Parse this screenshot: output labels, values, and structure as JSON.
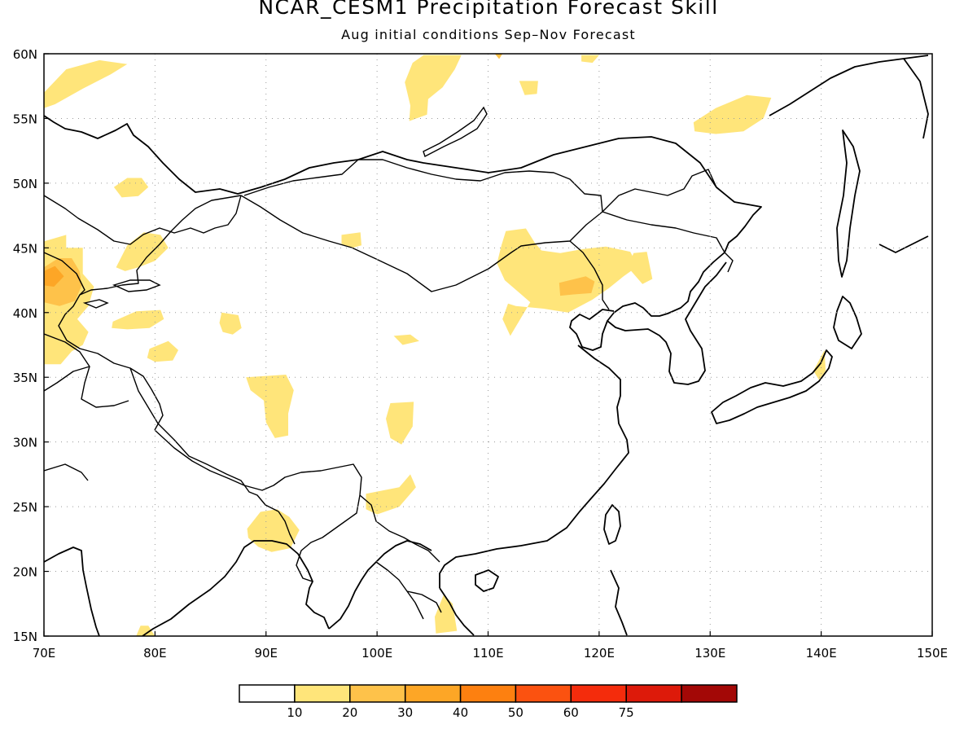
{
  "title": "NCAR_CESM1 Precipitation Forecast Skill",
  "subtitle": "Aug initial conditions  Sep–Nov Forecast",
  "map": {
    "lon_range": [
      70,
      150
    ],
    "lat_range": [
      15,
      60
    ],
    "lon_ticks": [
      {
        "lon": 70,
        "label": "70E"
      },
      {
        "lon": 80,
        "label": "80E"
      },
      {
        "lon": 90,
        "label": "90E"
      },
      {
        "lon": 100,
        "label": "100E"
      },
      {
        "lon": 110,
        "label": "110E"
      },
      {
        "lon": 120,
        "label": "120E"
      },
      {
        "lon": 130,
        "label": "130E"
      },
      {
        "lon": 140,
        "label": "140E"
      },
      {
        "lon": 150,
        "label": "150E"
      }
    ],
    "lat_ticks": [
      {
        "lat": 15,
        "label": "15N"
      },
      {
        "lat": 20,
        "label": "20N"
      },
      {
        "lat": 25,
        "label": "25N"
      },
      {
        "lat": 30,
        "label": "30N"
      },
      {
        "lat": 35,
        "label": "35N"
      },
      {
        "lat": 40,
        "label": "40N"
      },
      {
        "lat": 45,
        "label": "45N"
      },
      {
        "lat": 50,
        "label": "50N"
      },
      {
        "lat": 55,
        "label": "55N"
      },
      {
        "lat": 60,
        "label": "60N"
      }
    ],
    "grid": "dotted"
  },
  "legend": {
    "colors": [
      "#ffffff",
      "#ffe57a",
      "#fec24a",
      "#fda626",
      "#fd8010",
      "#fb5210",
      "#f42c0c",
      "#dd1a0a",
      "#a30806"
    ],
    "labels": [
      "10",
      "20",
      "30",
      "40",
      "50",
      "60",
      "75"
    ]
  },
  "skill_regions": [
    {
      "level": 1,
      "lonlat": [
        [
          70,
          57
        ],
        [
          72,
          58.8
        ],
        [
          75,
          59.5
        ],
        [
          77.5,
          59.2
        ],
        [
          76,
          58.4
        ],
        [
          73.5,
          57.3
        ],
        [
          71,
          56.1
        ],
        [
          70,
          55.8
        ]
      ]
    },
    {
      "level": 1,
      "lonlat": [
        [
          70,
          45.5
        ],
        [
          72,
          46
        ],
        [
          72,
          45
        ],
        [
          73.5,
          45
        ],
        [
          73.5,
          43
        ],
        [
          74.5,
          42
        ],
        [
          74,
          40.5
        ],
        [
          73,
          39.5
        ],
        [
          74,
          38.5
        ],
        [
          73.5,
          37.5
        ],
        [
          72.5,
          37
        ],
        [
          71.5,
          36
        ],
        [
          70,
          36
        ]
      ]
    },
    {
      "level": 1,
      "lonlat": [
        [
          76.5,
          43.5
        ],
        [
          77.5,
          45.2
        ],
        [
          79,
          46.2
        ],
        [
          80.5,
          46
        ],
        [
          81.2,
          45
        ],
        [
          80,
          44
        ],
        [
          78.5,
          43.5
        ],
        [
          77.3,
          43.2
        ]
      ]
    },
    {
      "level": 1,
      "lonlat": [
        [
          76.2,
          39.3
        ],
        [
          78.3,
          40.1
        ],
        [
          80.5,
          40.2
        ],
        [
          80.8,
          39.5
        ],
        [
          79.5,
          38.8
        ],
        [
          77.5,
          38.7
        ],
        [
          76.1,
          38.8
        ]
      ]
    },
    {
      "level": 1,
      "lonlat": [
        [
          76.3,
          49.7
        ],
        [
          77.5,
          50.4
        ],
        [
          78.8,
          50.4
        ],
        [
          79.4,
          49.7
        ],
        [
          78.5,
          49
        ],
        [
          77,
          48.9
        ]
      ]
    },
    {
      "level": 1,
      "lonlat": [
        [
          79.5,
          37.2
        ],
        [
          81.2,
          37.8
        ],
        [
          82.1,
          37.1
        ],
        [
          81.6,
          36.3
        ],
        [
          80,
          36.2
        ],
        [
          79.3,
          36.5
        ]
      ]
    },
    {
      "level": 1,
      "lonlat": [
        [
          86,
          40
        ],
        [
          87.5,
          39.8
        ],
        [
          87.8,
          38.8
        ],
        [
          87,
          38.3
        ],
        [
          86.1,
          38.5
        ],
        [
          85.8,
          39.2
        ]
      ]
    },
    {
      "level": 1,
      "lonlat": [
        [
          88.2,
          35
        ],
        [
          91.8,
          35.2
        ],
        [
          92.5,
          34
        ],
        [
          92,
          32.2
        ],
        [
          92,
          30.5
        ],
        [
          90.8,
          30.3
        ],
        [
          90,
          31.5
        ],
        [
          89.8,
          33.2
        ],
        [
          88.6,
          34
        ]
      ]
    },
    {
      "level": 1,
      "lonlat": [
        [
          96.8,
          46
        ],
        [
          98.5,
          46.2
        ],
        [
          98.6,
          45.2
        ],
        [
          97.8,
          45
        ],
        [
          96.8,
          45.3
        ]
      ]
    },
    {
      "level": 1,
      "lonlat": [
        [
          101.2,
          33
        ],
        [
          103.3,
          33.1
        ],
        [
          103.2,
          31.2
        ],
        [
          102.2,
          29.8
        ],
        [
          101.2,
          30.3
        ],
        [
          100.8,
          31.8
        ]
      ]
    },
    {
      "level": 1,
      "lonlat": [
        [
          99,
          26
        ],
        [
          102,
          26.5
        ],
        [
          103,
          27.5
        ],
        [
          103.5,
          26.5
        ],
        [
          102,
          25
        ],
        [
          100,
          24.4
        ],
        [
          99,
          24.8
        ]
      ]
    },
    {
      "level": 1,
      "lonlat": [
        [
          88.3,
          23.3
        ],
        [
          89.5,
          24.6
        ],
        [
          91,
          24.8
        ],
        [
          92.1,
          24.2
        ],
        [
          93,
          23.2
        ],
        [
          92.2,
          21.8
        ],
        [
          90.5,
          21.5
        ],
        [
          89.3,
          21.9
        ],
        [
          88.4,
          22.6
        ]
      ]
    },
    {
      "level": 1,
      "lonlat": [
        [
          101.5,
          38.2
        ],
        [
          103,
          38.3
        ],
        [
          103.8,
          37.8
        ],
        [
          102.3,
          37.5
        ]
      ]
    },
    {
      "level": 1,
      "lonlat": [
        [
          104.2,
          59.9
        ],
        [
          107.6,
          59.9
        ],
        [
          107,
          58.8
        ],
        [
          105.9,
          57.4
        ],
        [
          104.6,
          56.5
        ],
        [
          104.5,
          55.3
        ],
        [
          102.9,
          54.8
        ],
        [
          103,
          56
        ],
        [
          102.5,
          57.8
        ],
        [
          103.2,
          59.3
        ]
      ]
    },
    {
      "level": 1,
      "lonlat": [
        [
          112.8,
          57.9
        ],
        [
          114.5,
          57.9
        ],
        [
          114.4,
          56.9
        ],
        [
          113.3,
          56.8
        ]
      ]
    },
    {
      "level": 1,
      "lonlat": [
        [
          118.4,
          59.9
        ],
        [
          120,
          59.9
        ],
        [
          119.4,
          59.3
        ],
        [
          118.4,
          59.4
        ]
      ]
    },
    {
      "level": 1,
      "lonlat": [
        [
          128.5,
          54.7
        ],
        [
          130.5,
          55.8
        ],
        [
          133.3,
          56.8
        ],
        [
          135.5,
          56.6
        ],
        [
          134.8,
          55
        ],
        [
          133,
          54
        ],
        [
          130.5,
          53.8
        ],
        [
          128.6,
          54
        ]
      ]
    },
    {
      "level": 1,
      "lonlat": [
        [
          111.6,
          46.3
        ],
        [
          113.4,
          46.5
        ],
        [
          114.2,
          45.4
        ],
        [
          114.8,
          44.8
        ],
        [
          116.5,
          44.6
        ],
        [
          118.5,
          44.9
        ],
        [
          120.6,
          45.1
        ],
        [
          122.8,
          44.7
        ],
        [
          123.5,
          43.6
        ],
        [
          122.2,
          42.8
        ],
        [
          120.9,
          41.9
        ],
        [
          119.4,
          41
        ],
        [
          117.2,
          40
        ],
        [
          115,
          40.3
        ],
        [
          112.5,
          40.5
        ],
        [
          111.8,
          40.7
        ],
        [
          111.3,
          39.5
        ],
        [
          112,
          38.2
        ],
        [
          113.8,
          40.8
        ],
        [
          111.5,
          42.5
        ],
        [
          110.8,
          43.8
        ],
        [
          111.2,
          45.2
        ]
      ]
    },
    {
      "level": 1,
      "lonlat": [
        [
          122.6,
          43.5
        ],
        [
          123.9,
          42.2
        ],
        [
          124.8,
          42.6
        ],
        [
          124.3,
          44.7
        ],
        [
          123.1,
          44.6
        ]
      ]
    },
    {
      "level": 1,
      "lonlat": [
        [
          139.3,
          35.5
        ],
        [
          140.3,
          37.1
        ],
        [
          140.4,
          35.5
        ],
        [
          139.8,
          34.8
        ]
      ]
    },
    {
      "level": 1,
      "lonlat": [
        [
          105.2,
          16.5
        ],
        [
          106,
          18.2
        ],
        [
          106.8,
          17.5
        ],
        [
          107.2,
          15.4
        ],
        [
          105.3,
          15.2
        ]
      ]
    },
    {
      "level": 1,
      "lonlat": [
        [
          78.3,
          15
        ],
        [
          80,
          15
        ],
        [
          79.4,
          15.8
        ],
        [
          78.7,
          15.8
        ]
      ]
    },
    {
      "level": 2,
      "lonlat": [
        [
          70,
          43.5
        ],
        [
          71.3,
          44.2
        ],
        [
          72.5,
          44.2
        ],
        [
          73.2,
          43.2
        ],
        [
          73.4,
          42.1
        ],
        [
          72.8,
          40.9
        ],
        [
          71.4,
          40.5
        ],
        [
          70,
          40.8
        ]
      ]
    },
    {
      "level": 2,
      "lonlat": [
        [
          116.4,
          42.3
        ],
        [
          118.8,
          42.8
        ],
        [
          119.6,
          42.4
        ],
        [
          119.3,
          41.5
        ],
        [
          117.7,
          41.4
        ],
        [
          116.5,
          41.3
        ]
      ]
    },
    {
      "level": 2,
      "lonlat": [
        [
          110.6,
          60
        ],
        [
          111.3,
          60
        ],
        [
          111,
          59.6
        ]
      ]
    },
    {
      "level": 3,
      "lonlat": [
        [
          70,
          43.2
        ],
        [
          71,
          43.6
        ],
        [
          71.8,
          42.8
        ],
        [
          70.9,
          42
        ],
        [
          70,
          42.1
        ]
      ]
    }
  ]
}
